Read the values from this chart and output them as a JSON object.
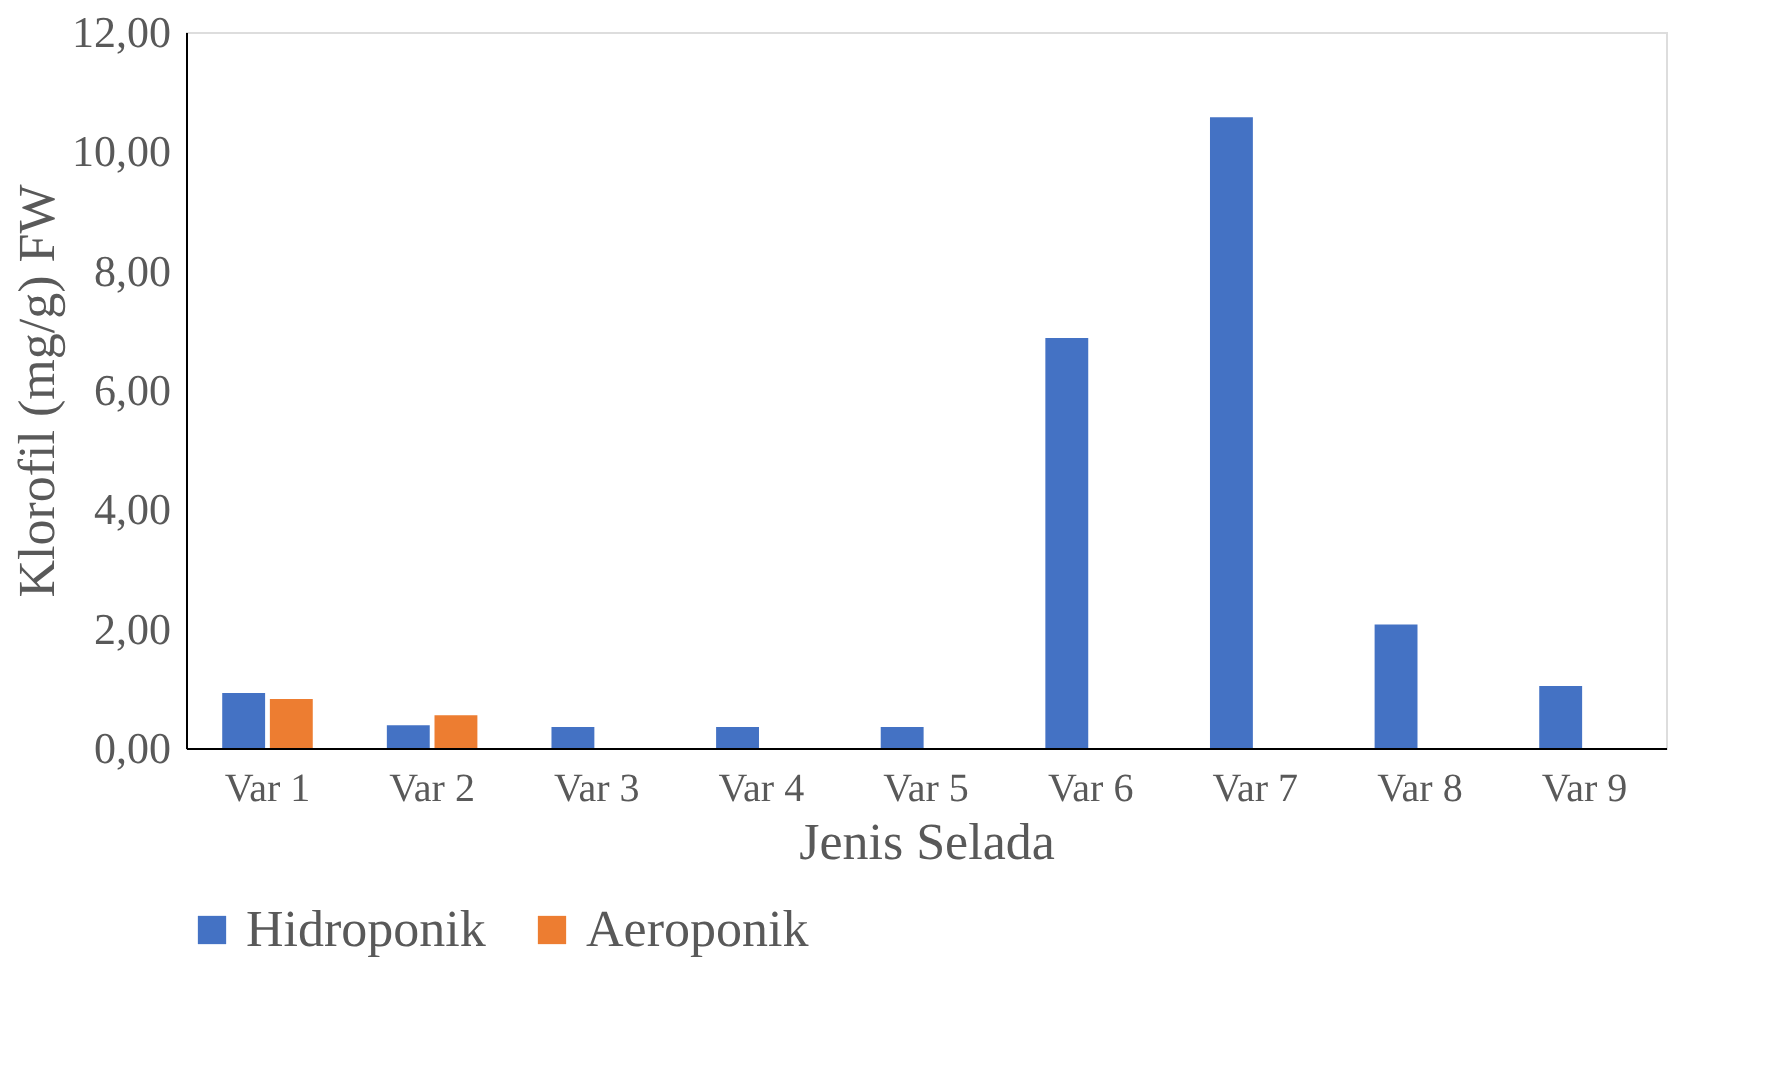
{
  "chart_data": {
    "type": "bar",
    "xlabel": "Jenis Selada",
    "ylabel": "Klorofil (mg/g) FW",
    "categories": [
      "Var 1",
      "Var 2",
      "Var 3",
      "Var 4",
      "Var 5",
      "Var 6",
      "Var 7",
      "Var 8",
      "Var 9"
    ],
    "series": [
      {
        "name": "Hidroponik",
        "color": "#4472c4",
        "values": [
          0.92,
          0.38,
          0.35,
          0.35,
          0.35,
          6.87,
          10.57,
          2.07,
          1.04
        ]
      },
      {
        "name": "Aeroponik",
        "color": "#ed7d31",
        "values": [
          0.82,
          0.55,
          null,
          null,
          null,
          null,
          null,
          null,
          null
        ]
      }
    ],
    "ylim": [
      0,
      12
    ],
    "yticks": [
      {
        "value": 0,
        "label": "0,00"
      },
      {
        "value": 2,
        "label": "2,00"
      },
      {
        "value": 4,
        "label": "4,00"
      },
      {
        "value": 6,
        "label": "6,00"
      },
      {
        "value": 8,
        "label": "8,00"
      },
      {
        "value": 10,
        "label": "10,00"
      },
      {
        "value": 12,
        "label": "12,00"
      }
    ],
    "grid": false,
    "legend": "bottom"
  }
}
